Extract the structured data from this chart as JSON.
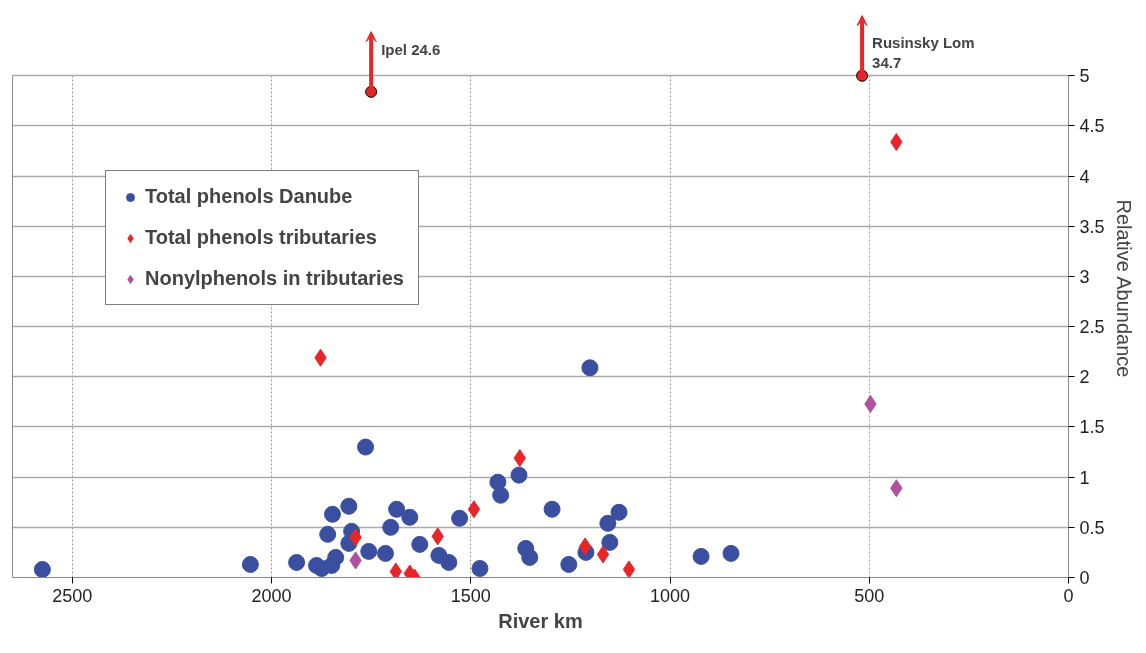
{
  "chart_data": {
    "type": "scatter",
    "xlabel": "River km",
    "ylabel": "Relative Abundance",
    "xlim": [
      2650,
      0
    ],
    "xticks": [
      2500,
      2000,
      1500,
      1000,
      500,
      0
    ],
    "ylim": [
      0,
      5
    ],
    "yticks": [
      0,
      0.5,
      1,
      1.5,
      2,
      2.5,
      3,
      3.5,
      4,
      4.5,
      5
    ],
    "grid": true,
    "legend": "top left",
    "series": [
      {
        "name": "Total phenols Danube",
        "color": "#3a4fa0",
        "marker": "circle",
        "x": [
          2575,
          2053,
          1937,
          1887,
          1874,
          1849,
          1839,
          1859,
          1847,
          1806,
          1799,
          1806,
          1764,
          1756,
          1714,
          1701,
          1686,
          1653,
          1628,
          1580,
          1555,
          1528,
          1477,
          1432,
          1425,
          1379,
          1362,
          1352,
          1296,
          1254,
          1211,
          1156,
          1128,
          1151,
          1201,
          922,
          847
        ],
        "values": [
          0.08,
          0.13,
          0.15,
          0.12,
          0.09,
          0.12,
          0.2,
          0.43,
          0.63,
          0.71,
          0.46,
          0.34,
          1.3,
          0.26,
          0.24,
          0.5,
          0.68,
          0.6,
          0.33,
          0.22,
          0.15,
          0.59,
          0.09,
          0.95,
          0.82,
          1.02,
          0.29,
          0.2,
          0.68,
          0.13,
          0.25,
          0.54,
          0.65,
          0.35,
          2.09,
          0.21,
          0.24
        ]
      },
      {
        "name": "Total phenols tributaries",
        "color": "#e8262a",
        "marker": "diamond",
        "x": [
          1877,
          1789,
          1688,
          1653,
          1641,
          1583,
          1492,
          1377,
          1213,
          1168,
          1103,
          432
        ],
        "values": [
          2.19,
          0.4,
          0.06,
          0.04,
          0.0,
          0.41,
          0.68,
          1.19,
          0.31,
          0.23,
          0.08,
          4.34
        ]
      },
      {
        "name": "Nonylphenols in tributaries",
        "color": "#b050a0",
        "marker": "diamond",
        "x": [
          1789,
          497,
          432
        ],
        "values": [
          0.17,
          1.73,
          0.89
        ]
      },
      {
        "color": "#e8262a",
        "marker": "circle",
        "x": [
          1750,
          518
        ],
        "values": [
          4.84,
          5.0
        ]
      }
    ],
    "annotations": [
      {
        "text": "Ipel  24.6",
        "x": 1750,
        "y": 4.84
      },
      {
        "text": "Rusinsky Lom\n34.7",
        "x": 518,
        "y": 5.0
      }
    ]
  }
}
